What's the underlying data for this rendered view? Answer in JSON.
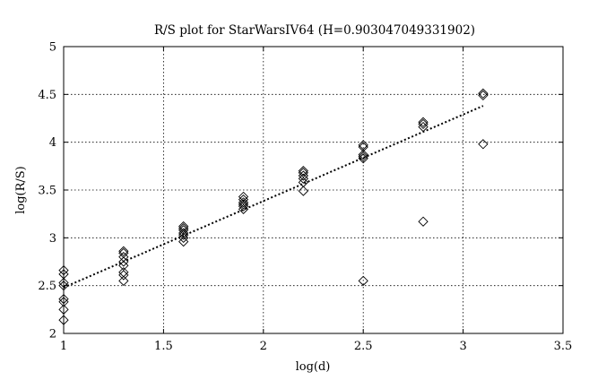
{
  "chart_data": {
    "type": "scatter",
    "title": "R/S plot for StarWarsIV64 (H=0.903047049331902)",
    "xlabel": "log(d)",
    "ylabel": "log(R/S)",
    "xlim": [
      1,
      3.5
    ],
    "ylim": [
      2,
      5
    ],
    "xticks": [
      1,
      1.5,
      2,
      2.5,
      3,
      3.5
    ],
    "xtick_labels": [
      "1",
      "1.5",
      "2",
      "2.5",
      "3",
      "3.5"
    ],
    "yticks": [
      2,
      2.5,
      3,
      3.5,
      4,
      4.5,
      5
    ],
    "ytick_labels": [
      "2",
      "2.5",
      "3",
      "3.5",
      "4",
      "4.5",
      "5"
    ],
    "grid": true,
    "marker": "diamond",
    "series": [
      {
        "marker": "diamond",
        "points": [
          [
            1.0,
            2.14
          ],
          [
            1.0,
            2.25
          ],
          [
            1.0,
            2.33
          ],
          [
            1.0,
            2.36
          ],
          [
            1.0,
            2.5
          ],
          [
            1.0,
            2.53
          ],
          [
            1.0,
            2.62
          ],
          [
            1.0,
            2.66
          ],
          [
            1.3,
            2.55
          ],
          [
            1.3,
            2.61
          ],
          [
            1.3,
            2.64
          ],
          [
            1.3,
            2.71
          ],
          [
            1.3,
            2.75
          ],
          [
            1.3,
            2.8
          ],
          [
            1.3,
            2.84
          ],
          [
            1.3,
            2.86
          ],
          [
            1.6,
            2.96
          ],
          [
            1.6,
            3.0
          ],
          [
            1.6,
            3.03
          ],
          [
            1.6,
            3.05
          ],
          [
            1.6,
            3.08
          ],
          [
            1.6,
            3.1
          ],
          [
            1.6,
            3.12
          ],
          [
            1.9,
            3.3
          ],
          [
            1.9,
            3.33
          ],
          [
            1.9,
            3.35
          ],
          [
            1.9,
            3.37
          ],
          [
            1.9,
            3.4
          ],
          [
            1.9,
            3.43
          ],
          [
            2.2,
            3.49
          ],
          [
            2.2,
            3.58
          ],
          [
            2.2,
            3.62
          ],
          [
            2.2,
            3.65
          ],
          [
            2.2,
            3.68
          ],
          [
            2.2,
            3.7
          ],
          [
            2.5,
            2.55
          ],
          [
            2.5,
            3.83
          ],
          [
            2.5,
            3.85
          ],
          [
            2.5,
            3.87
          ],
          [
            2.5,
            3.95
          ],
          [
            2.5,
            3.97
          ],
          [
            2.8,
            3.17
          ],
          [
            2.8,
            4.16
          ],
          [
            2.8,
            4.19
          ],
          [
            2.8,
            4.21
          ],
          [
            3.1,
            3.98
          ],
          [
            3.1,
            4.49
          ],
          [
            3.1,
            4.51
          ]
        ]
      },
      {
        "style": "dotted-line",
        "x": [
          1.0,
          3.1
        ],
        "y": [
          2.48,
          4.38
        ]
      }
    ]
  }
}
